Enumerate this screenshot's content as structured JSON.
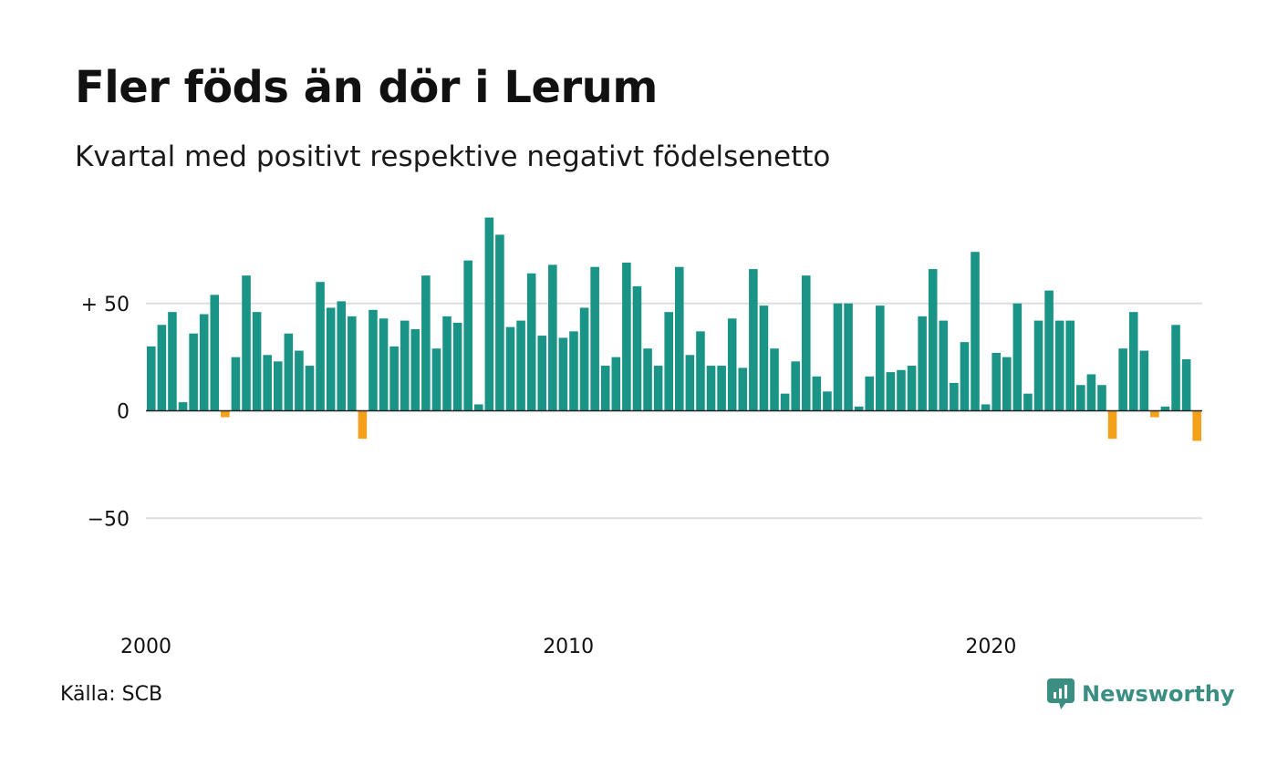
{
  "title": "Fler föds än dör i Lerum",
  "subtitle": "Kvartal med positivt respektive negativt födelsenetto",
  "source": "Källa: SCB",
  "brand": "Newsworthy",
  "colors": {
    "positive": "#1a9486",
    "negative": "#f5a01a",
    "grid": "#dddddd",
    "baseline": "#222222",
    "brand": "#3a8f82"
  },
  "icons": {
    "logo": "chat-bubble-bar-chart-icon"
  },
  "chart_data": {
    "type": "bar",
    "xlabel": "",
    "ylabel": "",
    "ylim": [
      -100,
      100
    ],
    "grid": true,
    "y_ticks": [
      {
        "value": 50,
        "label": "+ 50"
      },
      {
        "value": 0,
        "label": "0"
      },
      {
        "value": -50,
        "label": "−50"
      }
    ],
    "x_ticks": [
      {
        "value": 2000,
        "label": "2000"
      },
      {
        "value": 2010,
        "label": "2010"
      },
      {
        "value": 2020,
        "label": "2020"
      }
    ],
    "start_year": 2000,
    "values": [
      30,
      40,
      46,
      4,
      36,
      45,
      54,
      -3,
      25,
      63,
      46,
      26,
      23,
      36,
      28,
      21,
      60,
      48,
      51,
      44,
      -13,
      47,
      43,
      30,
      42,
      38,
      63,
      29,
      44,
      41,
      70,
      3,
      90,
      82,
      39,
      42,
      64,
      35,
      68,
      34,
      37,
      48,
      67,
      21,
      25,
      69,
      58,
      29,
      21,
      46,
      67,
      26,
      37,
      21,
      21,
      43,
      20,
      66,
      49,
      29,
      8,
      23,
      63,
      16,
      9,
      50,
      50,
      2,
      16,
      49,
      18,
      19,
      21,
      44,
      66,
      42,
      13,
      32,
      74,
      3,
      27,
      25,
      50,
      8,
      42,
      56,
      42,
      42,
      12,
      17,
      12,
      -13,
      29,
      46,
      28,
      -3,
      2,
      40,
      24,
      -14
    ]
  }
}
